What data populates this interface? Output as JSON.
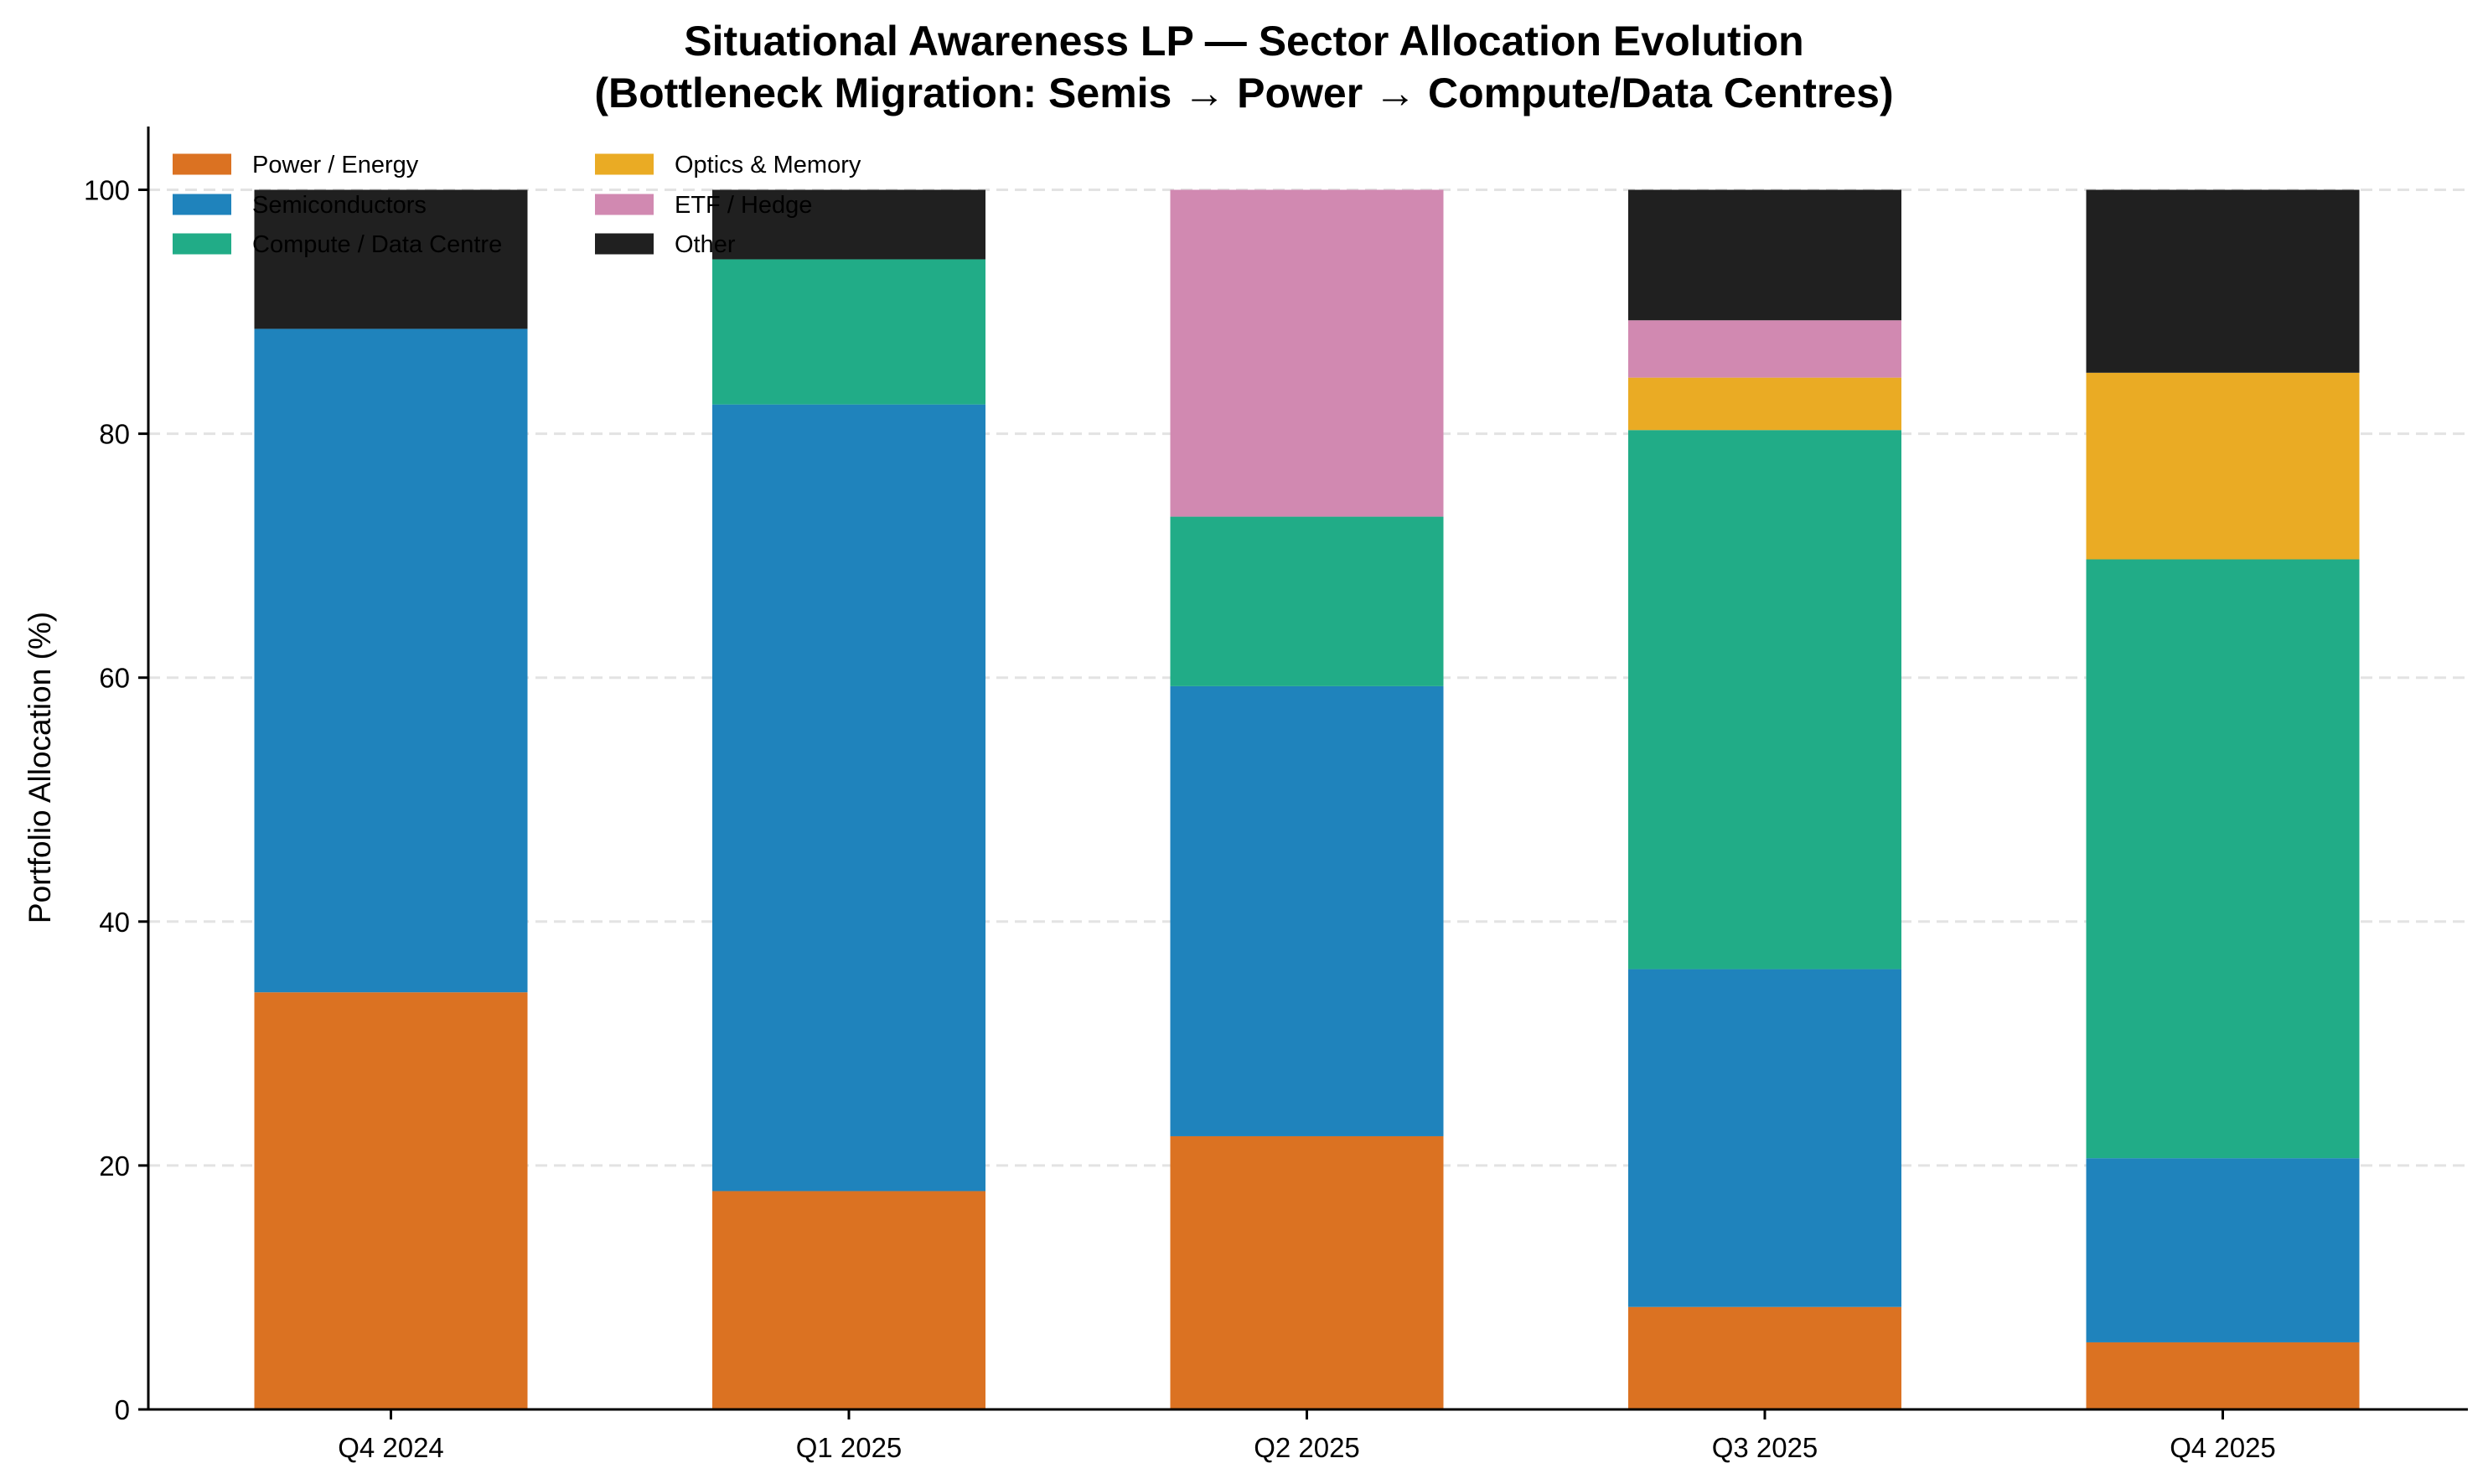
{
  "chart_data": {
    "type": "bar",
    "stacked": true,
    "title": "Situational Awareness LP — Sector Allocation Evolution",
    "subtitle": "(Bottleneck Migration: Semis → Power → Compute/Data Centres)",
    "xlabel": "",
    "ylabel": "Portfolio Allocation (%)",
    "ylim": [
      0,
      105
    ],
    "yticks": [
      0,
      20,
      40,
      60,
      80,
      100
    ],
    "grid": "horizontal dashed",
    "legend_position": "top-left",
    "categories": [
      "Q4 2024",
      "Q1 2025",
      "Q2 2025",
      "Q3 2025",
      "Q4 2025"
    ],
    "series": [
      {
        "name": "Power / Energy",
        "color": "#db7222",
        "values": [
          34.2,
          17.9,
          22.4,
          8.4,
          5.5
        ]
      },
      {
        "name": "Semiconductors",
        "color": "#1f83bc",
        "values": [
          54.4,
          64.5,
          36.9,
          27.7,
          15.1
        ]
      },
      {
        "name": "Compute / Data Centre",
        "color": "#21ac87",
        "values": [
          0,
          11.9,
          13.9,
          44.2,
          49.1
        ]
      },
      {
        "name": "Optics & Memory",
        "color": "#eaab24",
        "values": [
          0,
          0,
          0,
          4.3,
          15.3
        ]
      },
      {
        "name": "ETF / Hedge",
        "color": "#d189b1",
        "values": [
          0,
          0,
          26.8,
          4.7,
          0
        ]
      },
      {
        "name": "Other",
        "color": "#202020",
        "values": [
          11.4,
          5.7,
          0,
          10.7,
          15.0
        ]
      }
    ]
  }
}
